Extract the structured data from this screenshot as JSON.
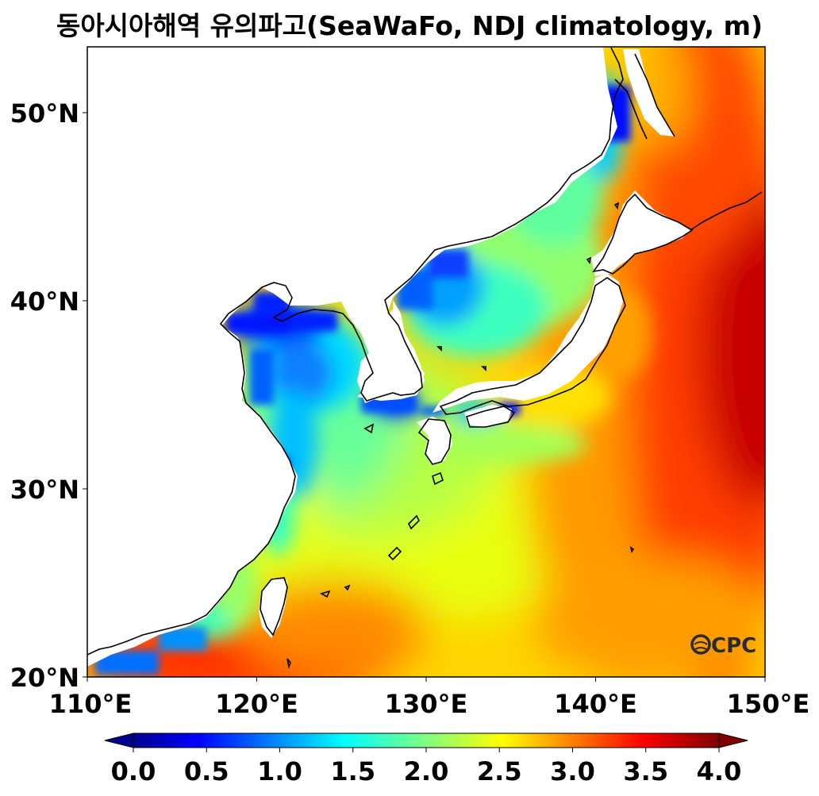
{
  "title": "동아시아해역 유의파고(SeaWaFo, NDJ climatology, m)",
  "map": {
    "lon_range": [
      110,
      150
    ],
    "lat_range": [
      20,
      53.5
    ],
    "x_ticks": [
      {
        "lon": 110,
        "label": "110°E"
      },
      {
        "lon": 120,
        "label": "120°E"
      },
      {
        "lon": 130,
        "label": "130°E"
      },
      {
        "lon": 140,
        "label": "140°E"
      },
      {
        "lon": 150,
        "label": "150°E"
      }
    ],
    "y_ticks": [
      {
        "lat": 20,
        "label": "20°N"
      },
      {
        "lat": 30,
        "label": "30°N"
      },
      {
        "lat": 40,
        "label": "40°N"
      },
      {
        "lat": 50,
        "label": "50°N"
      }
    ],
    "colormap": "jet",
    "colors": {
      "land": "#ffffff",
      "coastline": "#000000",
      "ocean_open_high": "#d40000",
      "ocean_low": "#0000ff"
    }
  },
  "colorbar": {
    "min": 0.0,
    "max": 4.0,
    "extend": "both",
    "tick_labels": [
      "0.0",
      "0.5",
      "1.0",
      "1.5",
      "2.0",
      "2.5",
      "3.0",
      "3.5",
      "4.0"
    ]
  },
  "logo": {
    "text": "OCPC",
    "color": "#2b2b2b"
  }
}
